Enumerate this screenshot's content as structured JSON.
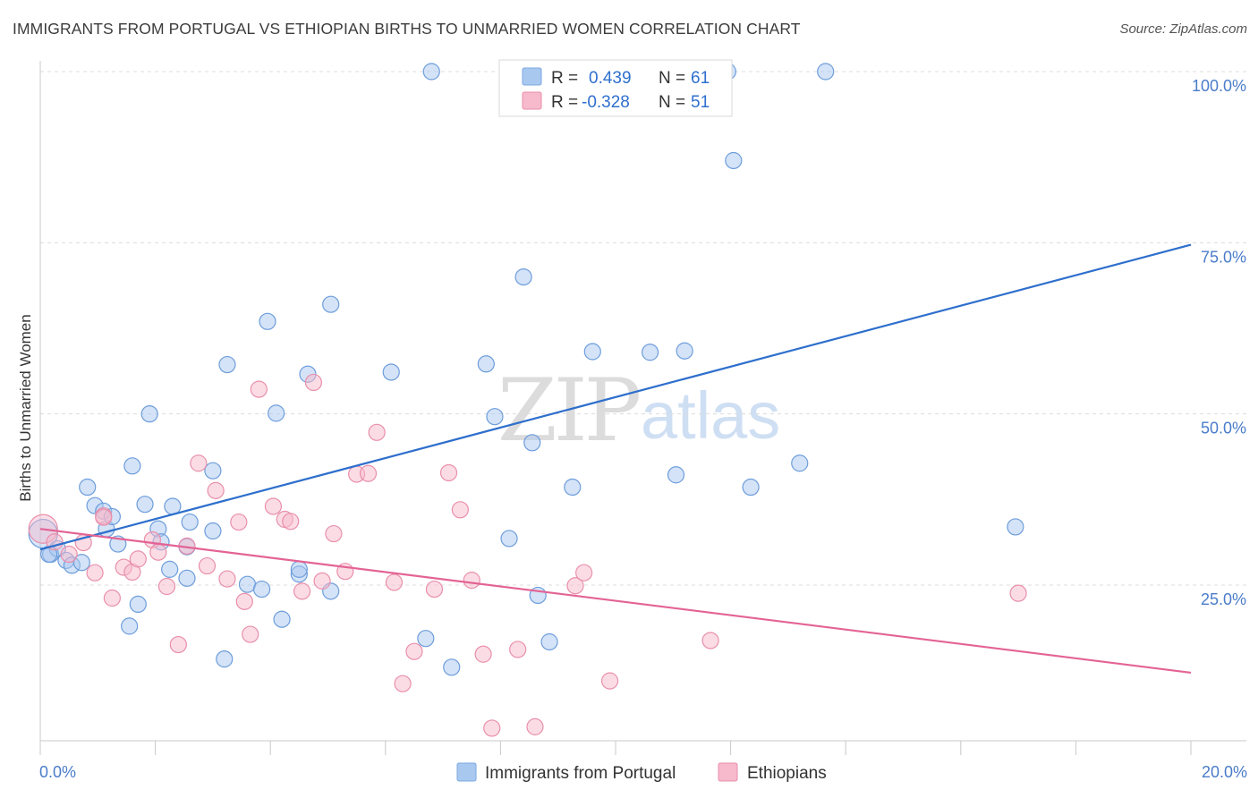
{
  "title": "IMMIGRANTS FROM PORTUGAL VS ETHIOPIAN BIRTHS TO UNMARRIED WOMEN CORRELATION CHART",
  "source": "Source: ZipAtlas.com",
  "watermark": {
    "zip": "ZIP",
    "atlas": "atlas"
  },
  "chart_data": {
    "type": "scatter",
    "title": "IMMIGRANTS FROM PORTUGAL VS ETHIOPIAN BIRTHS TO UNMARRIED WOMEN CORRELATION CHART",
    "xlabel": "",
    "ylabel": "Births to Unmarried Women",
    "xlim": [
      0,
      20
    ],
    "ylim": [
      0,
      103
    ],
    "x_tick_labels": [
      "0.0%",
      "20.0%"
    ],
    "y_ticks": [
      25,
      50,
      75,
      100
    ],
    "y_tick_labels": [
      "25.0%",
      "50.0%",
      "75.0%",
      "100.0%"
    ],
    "grid": true,
    "legend_top": [
      {
        "r_label": "R =",
        "r_value": "0.439",
        "n_label": "N =",
        "n_value": "61",
        "color": "#a9c8f0",
        "stroke": "#7aa8e0"
      },
      {
        "r_label": "R =",
        "r_value": "-0.328",
        "n_label": "N =",
        "n_value": "51",
        "color": "#f7b9cc",
        "stroke": "#e98fab"
      }
    ],
    "legend_bottom": [
      "Immigrants from Portugal",
      "Ethiopians"
    ],
    "series": [
      {
        "name": "Immigrants from Portugal",
        "color": "#a9c8f0",
        "stroke": "#6d9ddb",
        "trend": {
          "x": [
            0,
            20
          ],
          "y": [
            30.2,
            74.7
          ],
          "color": "#2e6fcc"
        },
        "points": [
          [
            0.05,
            32.5
          ],
          [
            0.18,
            29.5
          ],
          [
            0.3,
            30.3
          ],
          [
            0.45,
            28.6
          ],
          [
            0.55,
            27.9
          ],
          [
            0.72,
            28.3
          ],
          [
            0.82,
            39.3
          ],
          [
            0.95,
            36.6
          ],
          [
            1.1,
            35.8
          ],
          [
            1.15,
            33.2
          ],
          [
            1.35,
            31.0
          ],
          [
            1.55,
            19.0
          ],
          [
            1.7,
            22.2
          ],
          [
            1.6,
            42.4
          ],
          [
            1.82,
            36.8
          ],
          [
            1.9,
            50.0
          ],
          [
            2.05,
            33.2
          ],
          [
            2.1,
            31.3
          ],
          [
            2.25,
            27.3
          ],
          [
            2.55,
            26.0
          ],
          [
            2.55,
            30.6
          ],
          [
            2.6,
            34.2
          ],
          [
            3.0,
            32.9
          ],
          [
            3.0,
            41.7
          ],
          [
            3.2,
            14.2
          ],
          [
            3.25,
            57.2
          ],
          [
            3.6,
            25.1
          ],
          [
            3.85,
            24.4
          ],
          [
            3.95,
            63.5
          ],
          [
            4.1,
            50.1
          ],
          [
            4.2,
            20.0
          ],
          [
            4.5,
            26.6
          ],
          [
            4.5,
            27.3
          ],
          [
            4.65,
            55.8
          ],
          [
            5.05,
            24.1
          ],
          [
            5.05,
            66.0
          ],
          [
            6.1,
            56.1
          ],
          [
            6.7,
            17.2
          ],
          [
            6.8,
            100.0
          ],
          [
            7.15,
            13.0
          ],
          [
            7.75,
            57.3
          ],
          [
            7.9,
            49.6
          ],
          [
            8.15,
            31.8
          ],
          [
            8.4,
            70.0
          ],
          [
            8.55,
            45.8
          ],
          [
            8.65,
            23.5
          ],
          [
            8.85,
            16.7
          ],
          [
            9.25,
            39.3
          ],
          [
            9.6,
            59.1
          ],
          [
            10.6,
            59.0
          ],
          [
            11.05,
            41.1
          ],
          [
            11.2,
            59.2
          ],
          [
            11.95,
            100.0
          ],
          [
            12.05,
            87.0
          ],
          [
            12.35,
            39.3
          ],
          [
            13.2,
            42.8
          ],
          [
            13.65,
            100.0
          ],
          [
            16.95,
            33.5
          ],
          [
            2.3,
            36.5
          ],
          [
            1.25,
            35.0
          ],
          [
            0.15,
            29.5
          ]
        ]
      },
      {
        "name": "Ethiopians",
        "color": "#f7b9cc",
        "stroke": "#e98fab",
        "trend": {
          "x": [
            0,
            20
          ],
          "y": [
            33.2,
            12.2
          ],
          "color": "#e36394"
        },
        "points": [
          [
            0.05,
            33.2
          ],
          [
            0.25,
            31.3
          ],
          [
            0.5,
            29.5
          ],
          [
            0.75,
            31.2
          ],
          [
            0.95,
            26.8
          ],
          [
            1.1,
            35.1
          ],
          [
            1.25,
            23.1
          ],
          [
            1.45,
            27.6
          ],
          [
            1.6,
            26.9
          ],
          [
            1.7,
            28.8
          ],
          [
            1.95,
            31.6
          ],
          [
            2.05,
            29.8
          ],
          [
            2.2,
            24.8
          ],
          [
            2.4,
            16.3
          ],
          [
            2.55,
            30.7
          ],
          [
            2.75,
            42.8
          ],
          [
            2.9,
            27.8
          ],
          [
            3.05,
            38.8
          ],
          [
            3.25,
            25.9
          ],
          [
            3.45,
            34.2
          ],
          [
            3.55,
            22.6
          ],
          [
            3.65,
            17.8
          ],
          [
            3.8,
            53.6
          ],
          [
            4.05,
            36.5
          ],
          [
            4.25,
            34.6
          ],
          [
            4.35,
            34.3
          ],
          [
            4.55,
            24.1
          ],
          [
            4.75,
            54.6
          ],
          [
            4.9,
            25.6
          ],
          [
            5.1,
            32.5
          ],
          [
            5.3,
            27.0
          ],
          [
            5.5,
            41.2
          ],
          [
            5.7,
            41.3
          ],
          [
            5.85,
            47.3
          ],
          [
            6.15,
            25.4
          ],
          [
            6.3,
            10.6
          ],
          [
            6.5,
            15.3
          ],
          [
            6.85,
            24.4
          ],
          [
            7.1,
            41.4
          ],
          [
            7.3,
            36.0
          ],
          [
            7.5,
            25.7
          ],
          [
            7.7,
            14.9
          ],
          [
            7.85,
            4.1
          ],
          [
            8.3,
            15.6
          ],
          [
            8.6,
            4.3
          ],
          [
            9.3,
            24.9
          ],
          [
            9.45,
            26.8
          ],
          [
            9.9,
            11.0
          ],
          [
            11.65,
            16.9
          ],
          [
            17.0,
            23.8
          ],
          [
            1.1,
            34.9
          ]
        ]
      }
    ]
  }
}
